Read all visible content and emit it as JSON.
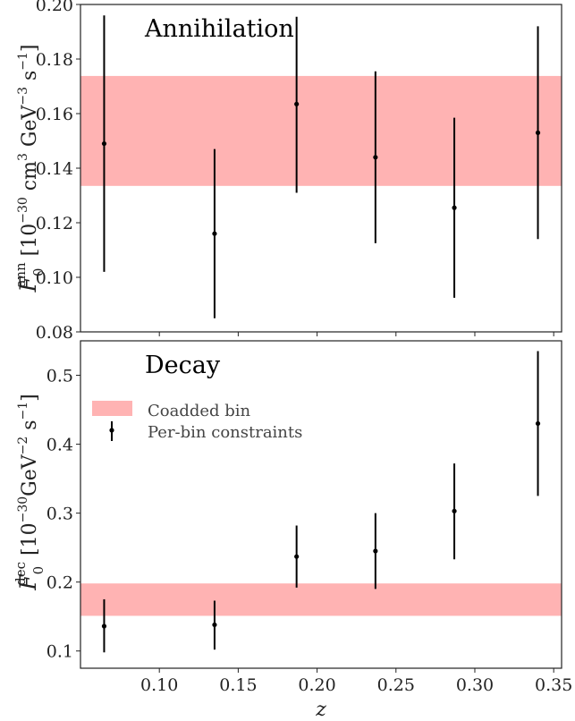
{
  "chart_data": [
    {
      "type": "scatter",
      "title": "Annihilation",
      "ylabel": "F_0^ann [10^-30 cm^3 GeV^-3 s^-1]",
      "ylabel_parts": {
        "sym": "F",
        "sub": "0",
        "sup": "ann",
        "bracket_open": " [10",
        "exp": "−30",
        "unit1": " cm",
        "unit1_exp": "3",
        "unit2": " GeV",
        "unit2_exp": "−3",
        "unit3": " s",
        "unit3_exp": "−1",
        "bracket_close": "]"
      },
      "xlim": [
        0.05,
        0.355
      ],
      "ylim": [
        0.08,
        0.2
      ],
      "yticks": [
        0.08,
        0.1,
        0.12,
        0.14,
        0.16,
        0.18,
        0.2
      ],
      "ytick_labels": [
        "0.08",
        "0.10",
        "0.12",
        "0.14",
        "0.16",
        "0.18",
        "0.20"
      ],
      "band": {
        "name": "Coadded bin",
        "lower": 0.1335,
        "upper": 0.1738,
        "color": "#ffb3b3"
      },
      "series": [
        {
          "name": "Per-bin constraints",
          "x": [
            0.065,
            0.135,
            0.187,
            0.237,
            0.287,
            0.34
          ],
          "y": [
            0.149,
            0.116,
            0.1635,
            0.144,
            0.1255,
            0.153
          ],
          "y_low": [
            0.102,
            0.085,
            0.131,
            0.1125,
            0.0925,
            0.114
          ],
          "y_high": [
            0.196,
            0.147,
            0.1955,
            0.1755,
            0.1585,
            0.192
          ]
        }
      ]
    },
    {
      "type": "scatter",
      "title": "Decay",
      "ylabel": "F_0^dec [10^-30 GeV^-2 s^-1]",
      "ylabel_parts": {
        "sym": "F",
        "sub": "0",
        "sup": "dec",
        "bracket_open": " [10",
        "exp": "−30",
        "unit2": "GeV",
        "unit2_exp": "−2",
        "unit3": " s",
        "unit3_exp": "−1",
        "bracket_close": "]"
      },
      "xlabel": "z",
      "xlim": [
        0.05,
        0.355
      ],
      "ylim": [
        0.075,
        0.55
      ],
      "xticks": [
        0.1,
        0.15,
        0.2,
        0.25,
        0.3,
        0.35
      ],
      "xtick_labels": [
        "0.10",
        "0.15",
        "0.20",
        "0.25",
        "0.30",
        "0.35"
      ],
      "yticks": [
        0.1,
        0.2,
        0.3,
        0.4,
        0.5
      ],
      "ytick_labels": [
        "0.1",
        "0.2",
        "0.3",
        "0.4",
        "0.5"
      ],
      "band": {
        "name": "Coadded bin",
        "lower": 0.151,
        "upper": 0.198,
        "color": "#ffb3b3"
      },
      "legend": {
        "position": "upper-left",
        "entries": [
          "Coadded bin",
          "Per-bin constraints"
        ]
      },
      "series": [
        {
          "name": "Per-bin constraints",
          "x": [
            0.065,
            0.135,
            0.187,
            0.237,
            0.287,
            0.34
          ],
          "y": [
            0.136,
            0.138,
            0.237,
            0.245,
            0.303,
            0.43
          ],
          "y_low": [
            0.098,
            0.102,
            0.192,
            0.19,
            0.233,
            0.325
          ],
          "y_high": [
            0.175,
            0.173,
            0.282,
            0.3,
            0.372,
            0.535
          ]
        }
      ]
    }
  ]
}
